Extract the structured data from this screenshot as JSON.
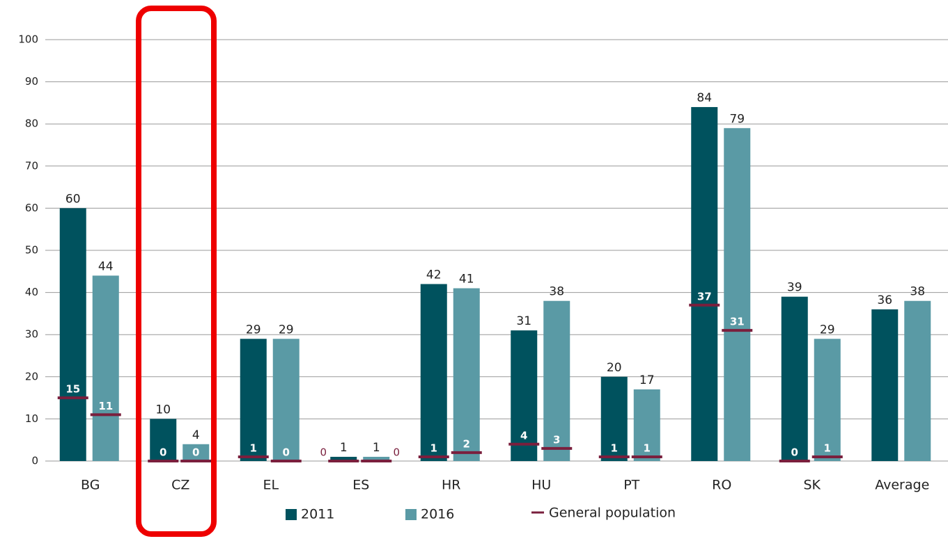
{
  "chart_data": {
    "type": "bar",
    "categories": [
      "BG",
      "CZ",
      "EL",
      "ES",
      "HR",
      "HU",
      "PT",
      "RO",
      "SK",
      "Average"
    ],
    "series": [
      {
        "name": "2011",
        "color": "#00525e",
        "values": [
          60,
          10,
          29,
          1,
          42,
          31,
          20,
          84,
          39,
          36
        ]
      },
      {
        "name": "2016",
        "color": "#5a9aa5",
        "values": [
          44,
          4,
          29,
          1,
          41,
          38,
          17,
          79,
          29,
          38
        ]
      }
    ],
    "general_population": {
      "name": "General population",
      "color": "#7a1f3d",
      "values": [
        [
          15,
          0,
          1,
          0,
          1,
          4,
          1,
          37,
          0,
          null
        ],
        [
          11,
          0,
          0,
          0,
          2,
          3,
          1,
          31,
          1,
          null
        ]
      ]
    },
    "ylim": [
      0,
      100
    ],
    "yticks": [
      0,
      10,
      20,
      30,
      40,
      50,
      60,
      70,
      80,
      90,
      100
    ],
    "grid": true
  }
}
